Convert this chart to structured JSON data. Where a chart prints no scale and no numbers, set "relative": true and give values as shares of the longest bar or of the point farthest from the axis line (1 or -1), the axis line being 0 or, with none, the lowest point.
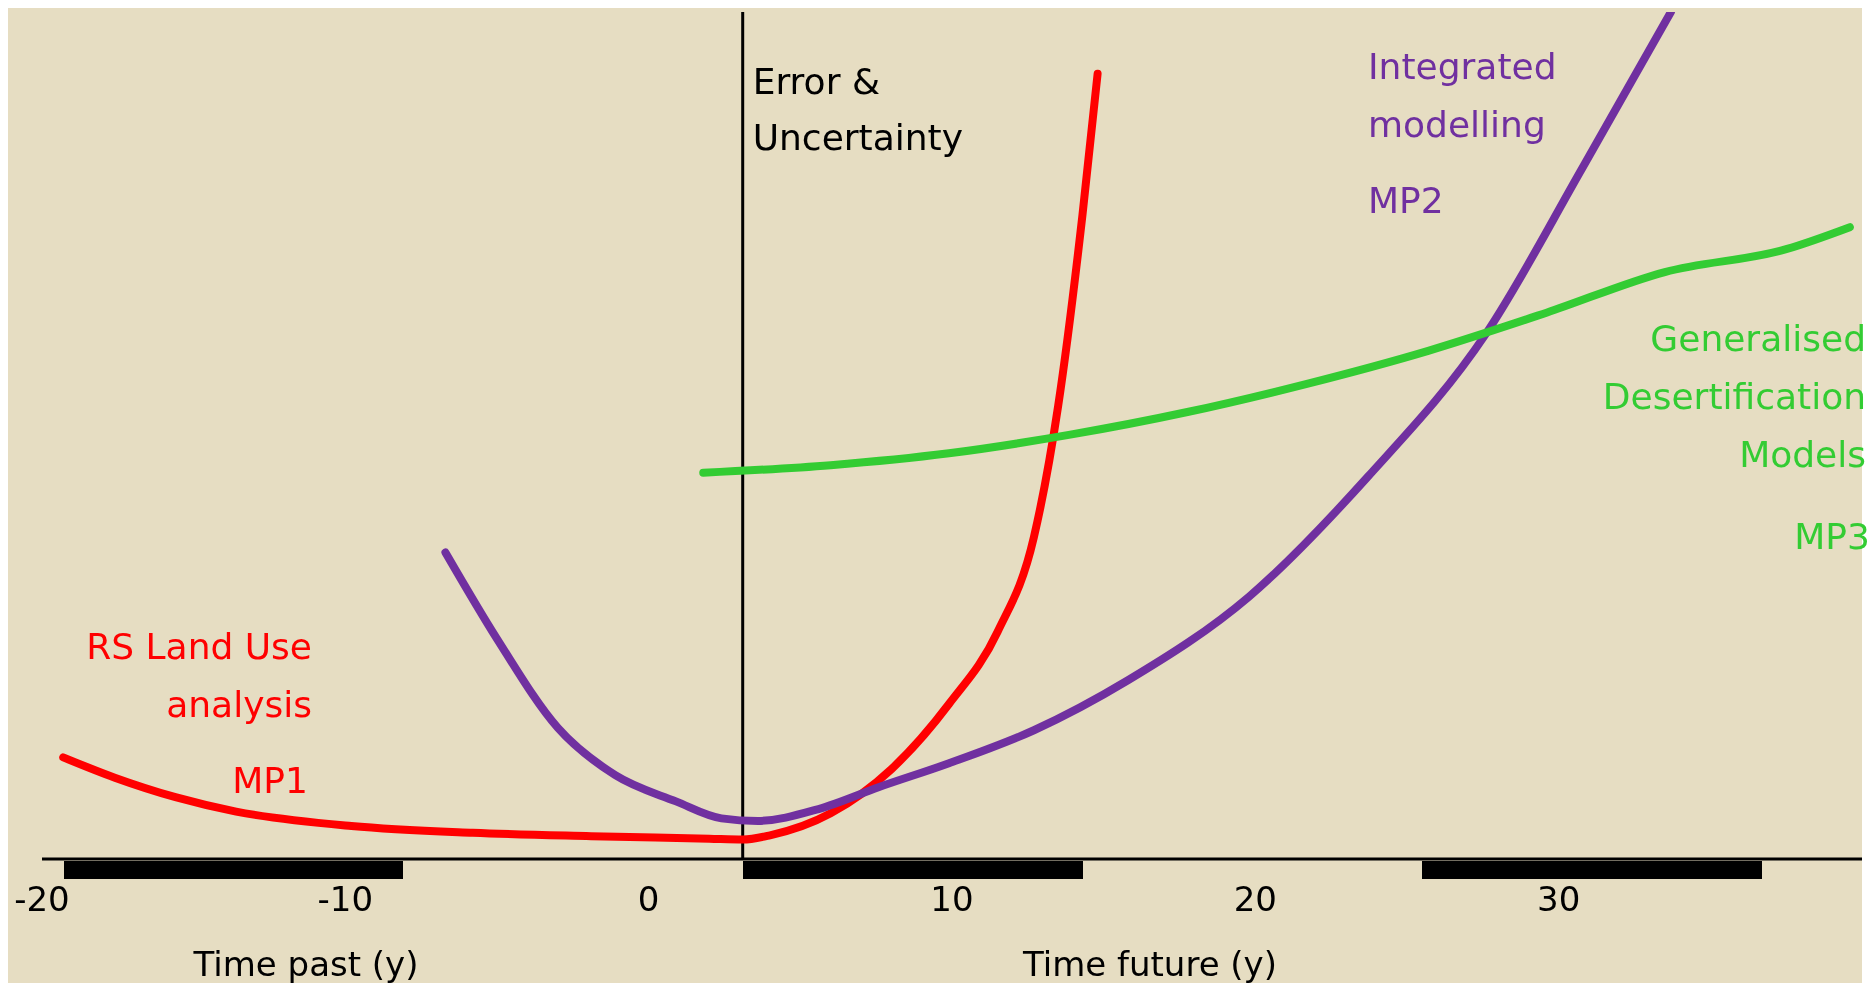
{
  "chart_data": {
    "type": "line",
    "relative": true,
    "xlim": [
      -20,
      40
    ],
    "xticks": [
      -20,
      -10,
      0,
      10,
      20,
      30
    ],
    "marker": "none",
    "line_style": "solid",
    "series": [
      {
        "name": "RS Land Use analysis",
        "color": "#ff0000",
        "x": [
          -19.3,
          -17.6,
          -15.6,
          -13.6,
          -9.8,
          -5.8,
          -1.9,
          2.0,
          3.1,
          4.0,
          6.0,
          8.0,
          9.9,
          11.5,
          12.7,
          13.5,
          14.3,
          14.8
        ],
        "values": [
          0.12,
          0.096,
          0.073,
          0.056,
          0.039,
          0.031,
          0.027,
          0.024,
          0.023,
          0.028,
          0.054,
          0.106,
          0.183,
          0.268,
          0.38,
          0.535,
          0.76,
          0.927
        ]
      },
      {
        "name": "Integrated modelling",
        "color": "#7030a0",
        "x": [
          -6.7,
          -5.0,
          -3.0,
          -1.1,
          0.9,
          2.4,
          3.6,
          5.6,
          7.6,
          9.9,
          12.7,
          15.8,
          19.8,
          23.7,
          27.6,
          30.8,
          33.7
        ],
        "values": [
          0.362,
          0.26,
          0.155,
          0.099,
          0.068,
          0.048,
          0.045,
          0.059,
          0.085,
          0.113,
          0.152,
          0.211,
          0.31,
          0.451,
          0.62,
          0.817,
          1
        ]
      },
      {
        "name": "Generalised Desertification Models",
        "color": "#33cc33",
        "x": [
          1.8,
          6.0,
          9.9,
          13.9,
          17.8,
          21.7,
          25.7,
          29.6,
          33.5,
          37.5,
          39.6
        ],
        "values": [
          0.456,
          0.465,
          0.479,
          0.501,
          0.528,
          0.561,
          0.6,
          0.645,
          0.693,
          0.72,
          0.746
        ]
      }
    ],
    "ref_lines": [
      {
        "axis": "x",
        "value": 3.1,
        "label": "Error & Uncertainty",
        "color": "#000000"
      }
    ],
    "annotations": [
      "MP1",
      "MP2",
      "MP3",
      "Time past (y)",
      "Time future (y)"
    ]
  }
}
